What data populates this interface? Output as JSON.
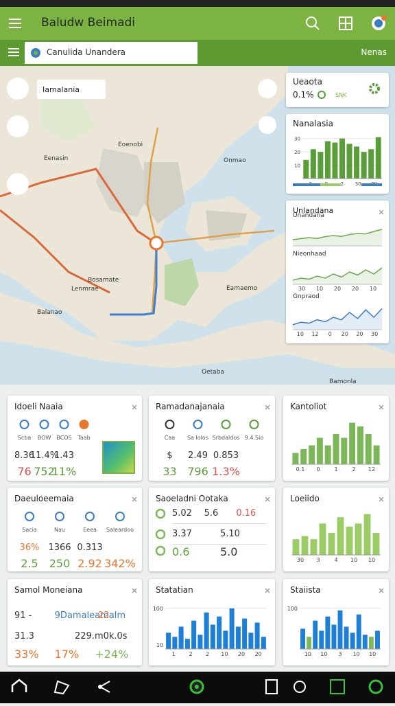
{
  "app_bar": {
    "title": "Baludw Beimadi"
  },
  "search": {
    "placeholder": "Canulida Unandera",
    "right_label": "Nenas"
  },
  "map": {
    "pin_label": "Iamalania",
    "labels": [
      "Eoenobi",
      "Eenasin",
      "Onmao",
      "Bosamate",
      "Lenmrae",
      "Eamaemo",
      "Balanao",
      "Oetaba",
      "Bamonla"
    ]
  },
  "side": {
    "stat": {
      "title": "Ueaota",
      "value": "0.1%",
      "tag": "SNK"
    },
    "bar_chart": {
      "title": "Nanalasia",
      "values": [
        14,
        22,
        20,
        28,
        27,
        30,
        26,
        24,
        20,
        22,
        31
      ],
      "ylim": [
        0,
        35
      ],
      "yticks": [
        10,
        20,
        30
      ],
      "xlabels": [
        "3",
        "8",
        "2",
        "30",
        "30"
      ],
      "color": "#5a9e3a"
    },
    "lines": {
      "title": "Unlandana",
      "charts": [
        {
          "title": "Unandana",
          "values": [
            3,
            3.5,
            4,
            3.6,
            4.5,
            5,
            4.6,
            5.5,
            6,
            5.8,
            7,
            8
          ],
          "ylim": [
            0,
            10
          ],
          "color": "#6aa84f",
          "xlabels": []
        },
        {
          "title": "Nieonhaad",
          "values": [
            2,
            3,
            2.5,
            4,
            3,
            5,
            3.5,
            6,
            4.5,
            7,
            5,
            8
          ],
          "ylim": [
            0,
            10
          ],
          "color": "#6aa84f",
          "xlabels": [
            "30",
            "10",
            "20",
            "20",
            "10"
          ]
        },
        {
          "title": "Gnpraod",
          "values": [
            2,
            3,
            2.6,
            4,
            3.2,
            5,
            4,
            7,
            4.5,
            8,
            5,
            8.5
          ],
          "ylim": [
            0,
            10
          ],
          "color": "#3b7dc4",
          "xlabels": [
            "10",
            "12",
            "0",
            "20",
            "20",
            "30"
          ]
        }
      ]
    }
  },
  "cards": [
    {
      "kind": "stats",
      "title": "Idoeli Naaia",
      "swatch": true,
      "icon_colors": [
        "#3b7dc4",
        "#3b7dc4",
        "#3b7dc4",
        "#e8772e"
      ],
      "rows": [
        {
          "texts": [
            "Scba",
            "BOW",
            "BCOS",
            "Taab"
          ],
          "colors": [
            "#555",
            "#555",
            "#555",
            "#555"
          ]
        },
        {
          "texts": [
            "8.36",
            "11.4%",
            "1.43"
          ],
          "colors": [
            "#333",
            "#333",
            "#333"
          ]
        },
        {
          "texts": [
            "76",
            "752",
            "11%"
          ],
          "colors": [
            "#d9534f",
            "#5a9e3a",
            "#5a9e3a"
          ]
        }
      ]
    },
    {
      "kind": "stats",
      "title": "Ramadanajanaia",
      "icon_colors": [
        "#333",
        "#3b7dc4",
        "#5a9e3a",
        "#5a9e3a"
      ],
      "rows": [
        {
          "texts": [
            "Caa",
            "Sa lolos",
            "Srbdaldos",
            "9.4.Sio"
          ],
          "colors": [
            "#555",
            "#555",
            "#555",
            "#555"
          ]
        },
        {
          "texts": [
            "$",
            "2.49",
            "0.853"
          ],
          "colors": [
            "#333",
            "#333",
            "#333"
          ]
        },
        {
          "texts": [
            "33",
            "796",
            "1.3%"
          ],
          "colors": [
            "#5a9e3a",
            "#5a9e3a",
            "#d9534f"
          ]
        }
      ]
    },
    {
      "kind": "bar",
      "title": "Kantoliot",
      "values": [
        3,
        4,
        5,
        7,
        5,
        8,
        7,
        11,
        10,
        8,
        5
      ],
      "ylim": [
        0,
        12
      ],
      "yticks": [],
      "xlabels": [
        "0.1",
        "0",
        "1",
        "2",
        "12"
      ],
      "color": "#7cb85a"
    },
    {
      "kind": "stats",
      "title": "Daeuloeemaia",
      "icon_colors": [
        "#3b7dc4",
        "#3b7dc4",
        "#3b7dc4",
        "#3b7dc4"
      ],
      "rows": [
        {
          "texts": [
            "Sacia",
            "Nau",
            "Eeea",
            "Saleardoo"
          ],
          "colors": [
            "#555",
            "#555",
            "#555",
            "#555"
          ]
        },
        {
          "texts": [
            "36%",
            "1366",
            "0.313"
          ],
          "colors": [
            "#e8772e",
            "#333",
            "#333"
          ]
        },
        {
          "texts": [
            "2.5",
            "250",
            "2.92",
            "342%"
          ],
          "colors": [
            "#5a9e3a",
            "#5a9e3a",
            "#e8772e",
            "#e8772e"
          ]
        }
      ]
    },
    {
      "kind": "stats",
      "title": "Saoeladni Ootaka",
      "bullets": [
        "#7cb85a",
        "#7cb85a",
        "#7cb85a"
      ],
      "rows": [
        {
          "texts": [
            "5.02",
            "5.6",
            "0.16"
          ],
          "colors": [
            "#333",
            "#333",
            "#d9534f"
          ]
        },
        {
          "texts": [
            "3.37",
            "5.10"
          ],
          "colors": [
            "#333",
            "#333"
          ]
        },
        {
          "texts": [
            "0.6",
            "5.0"
          ],
          "colors": [
            "#5a9e3a",
            "#333"
          ]
        }
      ]
    },
    {
      "kind": "bar",
      "title": "Loeiido",
      "values": [
        5,
        6,
        5,
        10,
        7,
        12,
        9,
        10,
        13,
        7
      ],
      "ylim": [
        0,
        14
      ],
      "yticks": [],
      "xlabels": [
        "30",
        "3",
        "4",
        "10",
        "10"
      ],
      "color": "#9ccc65"
    },
    {
      "kind": "stats",
      "title": "Samol Moneiana",
      "rows": [
        {
          "texts": [
            "91 -",
            "9Damaleamalm",
            "-22"
          ],
          "colors": [
            "#333",
            "#3b7dc4",
            "#e8772e"
          ]
        },
        {
          "texts": [
            "31.3",
            "229.m0k.0s"
          ],
          "colors": [
            "#333",
            "#333"
          ]
        },
        {
          "texts": [
            "33%",
            "17%",
            "+24%"
          ],
          "colors": [
            "#e8772e",
            "#e8772e",
            "#7cb85a"
          ]
        }
      ]
    },
    {
      "kind": "bar",
      "title": "Statatian",
      "values": [
        40,
        30,
        55,
        25,
        70,
        35,
        90,
        60,
        80,
        45,
        100,
        55,
        75,
        40,
        65,
        30
      ],
      "ylim": [
        0,
        115
      ],
      "yticks": [
        10,
        100
      ],
      "xlabels": [
        "1",
        "2",
        "2",
        "10",
        "20",
        "20"
      ],
      "color": "#1e7fd6"
    },
    {
      "kind": "bar",
      "title": "Staiista",
      "values": [
        50,
        30,
        70,
        45,
        80,
        60,
        95,
        55,
        40,
        85,
        35,
        30,
        45
      ],
      "ylim": [
        0,
        115
      ],
      "yticks": [
        100
      ],
      "xlabels": [
        "10",
        "10",
        "3",
        "10",
        "10"
      ],
      "colors": [
        "#1e7fd6",
        "#7cb85a",
        "#1e7fd6",
        "#1e7fd6",
        "#1e7fd6",
        "#1e7fd6",
        "#1e7fd6",
        "#1e7fd6",
        "#1e7fd6",
        "#1e7fd6",
        "#1e7fd6",
        "#7cb85a",
        "#1e7fd6"
      ]
    }
  ]
}
